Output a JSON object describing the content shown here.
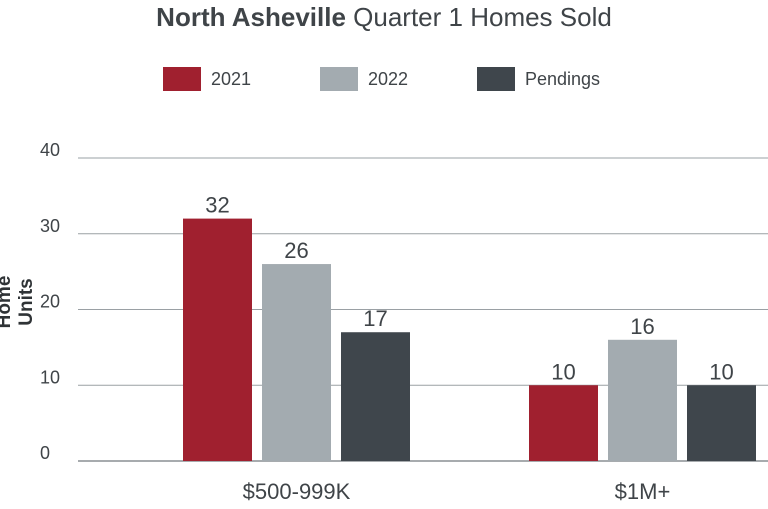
{
  "title": {
    "bold_part": "North Asheville",
    "rest": "Quarter 1 Homes Sold"
  },
  "legend": {
    "items": [
      {
        "label": "2021",
        "color": "#a0202f"
      },
      {
        "label": "2022",
        "color": "#a3abb0"
      },
      {
        "label": "Pendings",
        "color": "#3f464c"
      }
    ]
  },
  "chart_data": {
    "type": "bar",
    "title": "North Asheville Quarter 1 Homes Sold",
    "ylabel": "Home Units",
    "xlabel": "",
    "ylim": [
      0,
      40
    ],
    "yticks": [
      0,
      10,
      20,
      30,
      40
    ],
    "grid": true,
    "legend_position": "top",
    "categories": [
      "$500-999K",
      "$1M+"
    ],
    "series": [
      {
        "name": "2021",
        "values": [
          32,
          10
        ],
        "color": "#a0202f"
      },
      {
        "name": "2022",
        "values": [
          26,
          16
        ],
        "color": "#a3abb0"
      },
      {
        "name": "Pendings",
        "values": [
          17,
          10
        ],
        "color": "#3f464c"
      }
    ]
  }
}
